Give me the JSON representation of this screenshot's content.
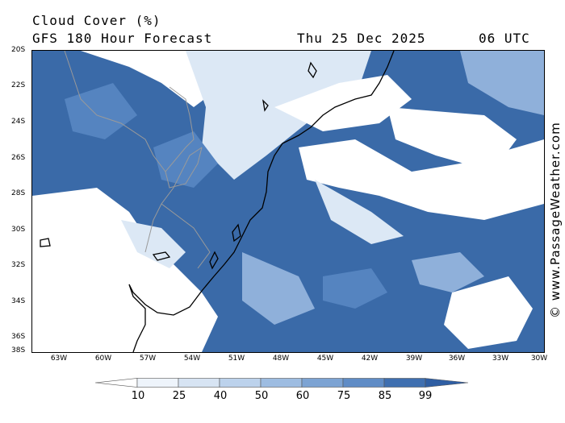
{
  "header": {
    "title": "Cloud Cover (%)",
    "subtitle": "GFS 180 Hour Forecast",
    "date": "Thu 25 Dec 2025",
    "time": "06 UTC"
  },
  "credit": "© www.PassageWeather.com",
  "map": {
    "lat_labels": [
      "20S",
      "22S",
      "24S",
      "26S",
      "28S",
      "30S",
      "32S",
      "34S",
      "36S",
      "38S"
    ],
    "lon_labels": [
      "63W",
      "60W",
      "57W",
      "54W",
      "51W",
      "48W",
      "45W",
      "42W",
      "39W",
      "36W",
      "33W",
      "30W"
    ],
    "colors": {
      "clear": "#ffffff",
      "light": "#dce8f5",
      "mid": "#8fb0da",
      "heavy": "#5584c0",
      "overcast": "#3a6aa8",
      "coastline": "#000000",
      "border": "#9a9a9a"
    }
  },
  "legend": {
    "labels": [
      "10",
      "25",
      "40",
      "50",
      "60",
      "75",
      "85",
      "99"
    ],
    "colors": [
      "#ffffff",
      "#eef4fb",
      "#d7e4f3",
      "#bcd2ec",
      "#9dbce1",
      "#7ca3d3",
      "#5f8cc6",
      "#3f6fb0",
      "#2f5ea3"
    ]
  }
}
